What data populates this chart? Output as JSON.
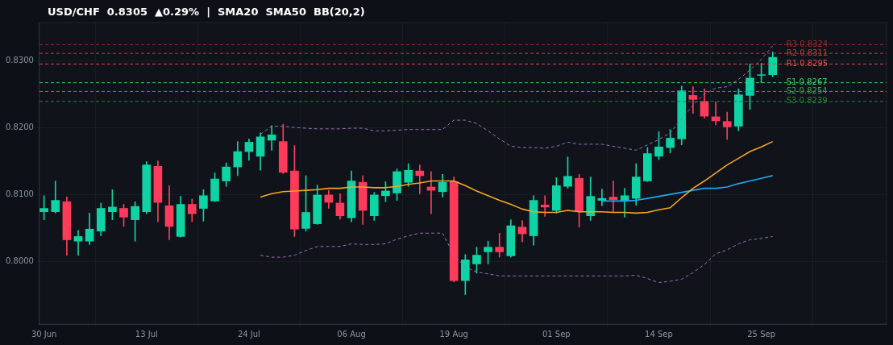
{
  "chart_data": {
    "type": "candlestick",
    "title": "USD/CHF  0.8305  ▲0.29%  |  SMA20  SMA50  BB(20,2)",
    "categories": [
      "30 Jun",
      null,
      null,
      null,
      null,
      null,
      null,
      null,
      null,
      "13 Jul",
      null,
      null,
      null,
      null,
      null,
      null,
      null,
      null,
      "24 Jul",
      null,
      null,
      null,
      null,
      null,
      null,
      null,
      null,
      "06 Aug",
      null,
      null,
      null,
      null,
      null,
      null,
      null,
      null,
      "19 Aug",
      null,
      null,
      null,
      null,
      null,
      null,
      null,
      null,
      "01 Sep",
      null,
      null,
      null,
      null,
      null,
      null,
      null,
      null,
      "14 Sep",
      null,
      null,
      null,
      null,
      null,
      null,
      null,
      null,
      "25 Sep",
      null
    ],
    "ohlc": [
      [
        0.8074,
        0.8098,
        0.8062,
        0.8079
      ],
      [
        0.8074,
        0.812,
        0.8072,
        0.8091
      ],
      [
        0.8089,
        0.8096,
        0.8009,
        0.8032
      ],
      [
        0.803,
        0.8046,
        0.8009,
        0.8037
      ],
      [
        0.803,
        0.8072,
        0.8025,
        0.8048
      ],
      [
        0.8045,
        0.8087,
        0.8038,
        0.8079
      ],
      [
        0.8074,
        0.8107,
        0.8062,
        0.8081
      ],
      [
        0.8079,
        0.8085,
        0.8052,
        0.8066
      ],
      [
        0.8062,
        0.8089,
        0.803,
        0.8082
      ],
      [
        0.8074,
        0.8149,
        0.8071,
        0.8144
      ],
      [
        0.8142,
        0.815,
        0.8059,
        0.8088
      ],
      [
        0.8083,
        0.8113,
        0.8032,
        0.8052
      ],
      [
        0.8037,
        0.8097,
        0.8036,
        0.8085
      ],
      [
        0.8085,
        0.8093,
        0.8059,
        0.8071
      ],
      [
        0.8079,
        0.8107,
        0.806,
        0.8098
      ],
      [
        0.809,
        0.8132,
        0.8089,
        0.8123
      ],
      [
        0.812,
        0.8147,
        0.8112,
        0.8141
      ],
      [
        0.8141,
        0.8179,
        0.8128,
        0.8164
      ],
      [
        0.8164,
        0.8183,
        0.8151,
        0.8178
      ],
      [
        0.8157,
        0.8192,
        0.8136,
        0.8186
      ],
      [
        0.8181,
        0.8203,
        0.8166,
        0.8189
      ],
      [
        0.8179,
        0.8205,
        0.8131,
        0.8133
      ],
      [
        0.8135,
        0.8173,
        0.8037,
        0.8048
      ],
      [
        0.8049,
        0.8128,
        0.8045,
        0.8073
      ],
      [
        0.8056,
        0.8114,
        0.8055,
        0.8099
      ],
      [
        0.8099,
        0.8106,
        0.8079,
        0.8088
      ],
      [
        0.8087,
        0.8101,
        0.8063,
        0.8068
      ],
      [
        0.8065,
        0.8135,
        0.8059,
        0.812
      ],
      [
        0.8118,
        0.8128,
        0.8055,
        0.8076
      ],
      [
        0.8068,
        0.8103,
        0.8061,
        0.8099
      ],
      [
        0.8098,
        0.8119,
        0.8089,
        0.8105
      ],
      [
        0.8102,
        0.8138,
        0.8091,
        0.8134
      ],
      [
        0.8118,
        0.8146,
        0.8112,
        0.8136
      ],
      [
        0.8135,
        0.8144,
        0.8101,
        0.8128
      ],
      [
        0.8111,
        0.8134,
        0.8071,
        0.8106
      ],
      [
        0.8104,
        0.813,
        0.8096,
        0.8118
      ],
      [
        0.8119,
        0.8126,
        0.7969,
        0.7971
      ],
      [
        0.7971,
        0.801,
        0.795,
        0.8002
      ],
      [
        0.7996,
        0.8021,
        0.7982,
        0.8009
      ],
      [
        0.8014,
        0.803,
        0.7996,
        0.8021
      ],
      [
        0.8021,
        0.8042,
        0.8006,
        0.8014
      ],
      [
        0.8008,
        0.8062,
        0.8006,
        0.8053
      ],
      [
        0.8051,
        0.8061,
        0.8029,
        0.8041
      ],
      [
        0.8038,
        0.8098,
        0.8024,
        0.8091
      ],
      [
        0.8084,
        0.8098,
        0.8067,
        0.8081
      ],
      [
        0.8076,
        0.8125,
        0.8072,
        0.8113
      ],
      [
        0.8112,
        0.8156,
        0.8109,
        0.8127
      ],
      [
        0.8124,
        0.813,
        0.8051,
        0.8074
      ],
      [
        0.8068,
        0.8126,
        0.8061,
        0.8097
      ],
      [
        0.8091,
        0.8108,
        0.8083,
        0.8094
      ],
      [
        0.8096,
        0.812,
        0.8074,
        0.8092
      ],
      [
        0.8091,
        0.8109,
        0.8066,
        0.8098
      ],
      [
        0.8094,
        0.8146,
        0.8084,
        0.8126
      ],
      [
        0.812,
        0.817,
        0.8119,
        0.8161
      ],
      [
        0.8157,
        0.8194,
        0.8152,
        0.8171
      ],
      [
        0.817,
        0.8197,
        0.8162,
        0.8184
      ],
      [
        0.8183,
        0.8262,
        0.8174,
        0.8255
      ],
      [
        0.8248,
        0.8261,
        0.8221,
        0.8242
      ],
      [
        0.8239,
        0.8258,
        0.8214,
        0.8217
      ],
      [
        0.8216,
        0.8238,
        0.8204,
        0.821
      ],
      [
        0.8209,
        0.8223,
        0.8182,
        0.8201
      ],
      [
        0.8202,
        0.8258,
        0.8195,
        0.8249
      ],
      [
        0.8248,
        0.8295,
        0.8227,
        0.8274
      ],
      [
        0.8278,
        0.8296,
        0.8267,
        0.8279
      ],
      [
        0.8279,
        0.8313,
        0.8276,
        0.8305
      ]
    ],
    "colors": [
      "#0fd3a5",
      "#0fd3a5",
      "#ff3b5c",
      "#0fd3a5",
      "#0fd3a5",
      "#0fd3a5",
      "#0fd3a5",
      "#ff3b5c",
      "#0fd3a5",
      "#0fd3a5",
      "#ff3b5c",
      "#ff3b5c",
      "#0fd3a5",
      "#ff3b5c",
      "#0fd3a5",
      "#0fd3a5",
      "#0fd3a5",
      "#0fd3a5",
      "#0fd3a5",
      "#0fd3a5",
      "#0fd3a5",
      "#ff3b5c",
      "#ff3b5c",
      "#0fd3a5",
      "#0fd3a5",
      "#ff3b5c",
      "#ff3b5c",
      "#0fd3a5",
      "#ff3b5c",
      "#0fd3a5",
      "#0fd3a5",
      "#0fd3a5",
      "#0fd3a5",
      "#ff3b5c",
      "#ff3b5c",
      "#0fd3a5",
      "#ff3b5c",
      "#0fd3a5",
      "#0fd3a5",
      "#0fd3a5",
      "#ff3b5c",
      "#0fd3a5",
      "#ff3b5c",
      "#0fd3a5",
      "#ff3b5c",
      "#0fd3a5",
      "#0fd3a5",
      "#ff3b5c",
      "#0fd3a5",
      "#0fd3a5",
      "#ff3b5c",
      "#0fd3a5",
      "#0fd3a5",
      "#0fd3a5",
      "#0fd3a5",
      "#0fd3a5",
      "#0fd3a5",
      "#ff3b5c",
      "#ff3b5c",
      "#ff3b5c",
      "#ff3b5c",
      "#0fd3a5",
      "#0fd3a5",
      "#0fd3a5",
      "#0fd3a5"
    ],
    "series": [
      {
        "type": "line",
        "color": "#f5a623",
        "values": [
          null,
          null,
          null,
          null,
          null,
          null,
          null,
          null,
          null,
          null,
          null,
          null,
          null,
          null,
          null,
          null,
          null,
          null,
          null,
          0.8096,
          0.8101,
          0.8104,
          0.8105,
          0.8106,
          0.8107,
          0.8109,
          0.8109,
          0.8111,
          0.8111,
          0.811,
          0.811,
          0.8112,
          0.8115,
          0.8117,
          0.812,
          0.812,
          0.812,
          0.8113,
          0.8105,
          0.8098,
          0.8091,
          0.8085,
          0.8078,
          0.8074,
          0.8073,
          0.8073,
          0.8076,
          0.8074,
          0.8074,
          0.8074,
          0.8073,
          0.8073,
          0.8072,
          0.8073,
          0.8077,
          0.808,
          0.8095,
          0.8109,
          0.812,
          0.8132,
          0.8144,
          0.8154,
          0.8164,
          0.8171,
          0.8179
        ],
        "line_style": "solid"
      },
      {
        "type": "line",
        "color": "#966ebe",
        "line_style": "dashed",
        "values": [
          null,
          null,
          null,
          null,
          null,
          null,
          null,
          null,
          null,
          null,
          null,
          null,
          null,
          null,
          null,
          null,
          null,
          null,
          null,
          0.819,
          0.8202,
          0.8202,
          0.82,
          0.8199,
          0.8198,
          0.8198,
          0.8198,
          0.8199,
          0.8199,
          0.8195,
          0.8195,
          0.8196,
          0.8197,
          0.8197,
          0.8197,
          0.8197,
          0.8211,
          0.8211,
          0.8206,
          0.8195,
          0.8183,
          0.8172,
          0.817,
          0.817,
          0.8169,
          0.8172,
          0.8178,
          0.8175,
          0.8175,
          0.8175,
          0.8172,
          0.8169,
          0.8166,
          0.8174,
          0.8182,
          0.8192,
          0.8213,
          0.8233,
          0.825,
          0.8259,
          0.8261,
          0.8272,
          0.8286,
          0.8302,
          0.8322
        ]
      },
      {
        "type": "line",
        "color": "#966ebe",
        "line_style": "dashed",
        "values": [
          null,
          null,
          null,
          null,
          null,
          null,
          null,
          null,
          null,
          null,
          null,
          null,
          null,
          null,
          null,
          null,
          null,
          null,
          null,
          0.8009,
          0.8006,
          0.8006,
          0.8009,
          0.8016,
          0.8022,
          0.8022,
          0.8022,
          0.8026,
          0.8025,
          0.8025,
          0.8026,
          0.8033,
          0.8038,
          0.8042,
          0.8042,
          0.8042,
          0.8009,
          0.7991,
          0.7984,
          0.7981,
          0.7978,
          0.7978,
          0.7978,
          0.7978,
          0.7978,
          0.7978,
          0.7978,
          0.7978,
          0.7978,
          0.7978,
          0.7978,
          0.7978,
          0.7979,
          0.7974,
          0.7968,
          0.797,
          0.7973,
          0.7983,
          0.7995,
          0.8011,
          0.8017,
          0.8026,
          0.8032,
          0.8034,
          0.8037
        ]
      },
      {
        "type": "line",
        "color": "#1fa8ec",
        "values": [
          null,
          null,
          null,
          null,
          null,
          null,
          null,
          null,
          null,
          null,
          null,
          null,
          null,
          null,
          null,
          null,
          null,
          null,
          null,
          null,
          null,
          null,
          null,
          null,
          null,
          null,
          null,
          null,
          null,
          null,
          null,
          null,
          null,
          null,
          null,
          null,
          null,
          null,
          null,
          null,
          null,
          null,
          null,
          null,
          null,
          null,
          null,
          null,
          null,
          0.809,
          0.809,
          0.809,
          0.8091,
          0.8094,
          0.8097,
          0.81,
          0.8103,
          0.8106,
          0.8109,
          0.8109,
          0.8111,
          0.8116,
          0.812,
          0.8124,
          0.8128
        ]
      }
    ],
    "ref_lines": [
      {
        "axis": "y",
        "value": 0.8324,
        "label": "R3 0.8324",
        "color": "#9b2c2c",
        "line_style": "dashed"
      },
      {
        "axis": "y",
        "value": 0.8311,
        "label": "R2 0.8311",
        "color": "#c23838",
        "line_style": "dashed"
      },
      {
        "axis": "y",
        "value": 0.8295,
        "label": "R1 0.8295",
        "color": "#e5484d",
        "line_style": "dashed"
      },
      {
        "axis": "y",
        "value": 0.8267,
        "label": "S1 0.8267",
        "color": "#3fd160",
        "line_style": "dashed"
      },
      {
        "axis": "y",
        "value": 0.8254,
        "label": "S2 0.8254",
        "color": "#2ea84a",
        "line_style": "dashed"
      },
      {
        "axis": "y",
        "value": 0.8239,
        "label": "S3 0.8239",
        "color": "#23803a",
        "line_style": "dashed"
      }
    ],
    "ylim": [
      0.7906,
      0.8357
    ],
    "yticks": [
      {
        "value": 0.8,
        "label": "0.8000"
      },
      {
        "value": 0.81,
        "label": "0.8100"
      },
      {
        "value": 0.82,
        "label": "0.8200"
      },
      {
        "value": 0.83,
        "label": "0.8300"
      }
    ],
    "grid": true,
    "legend": false
  }
}
